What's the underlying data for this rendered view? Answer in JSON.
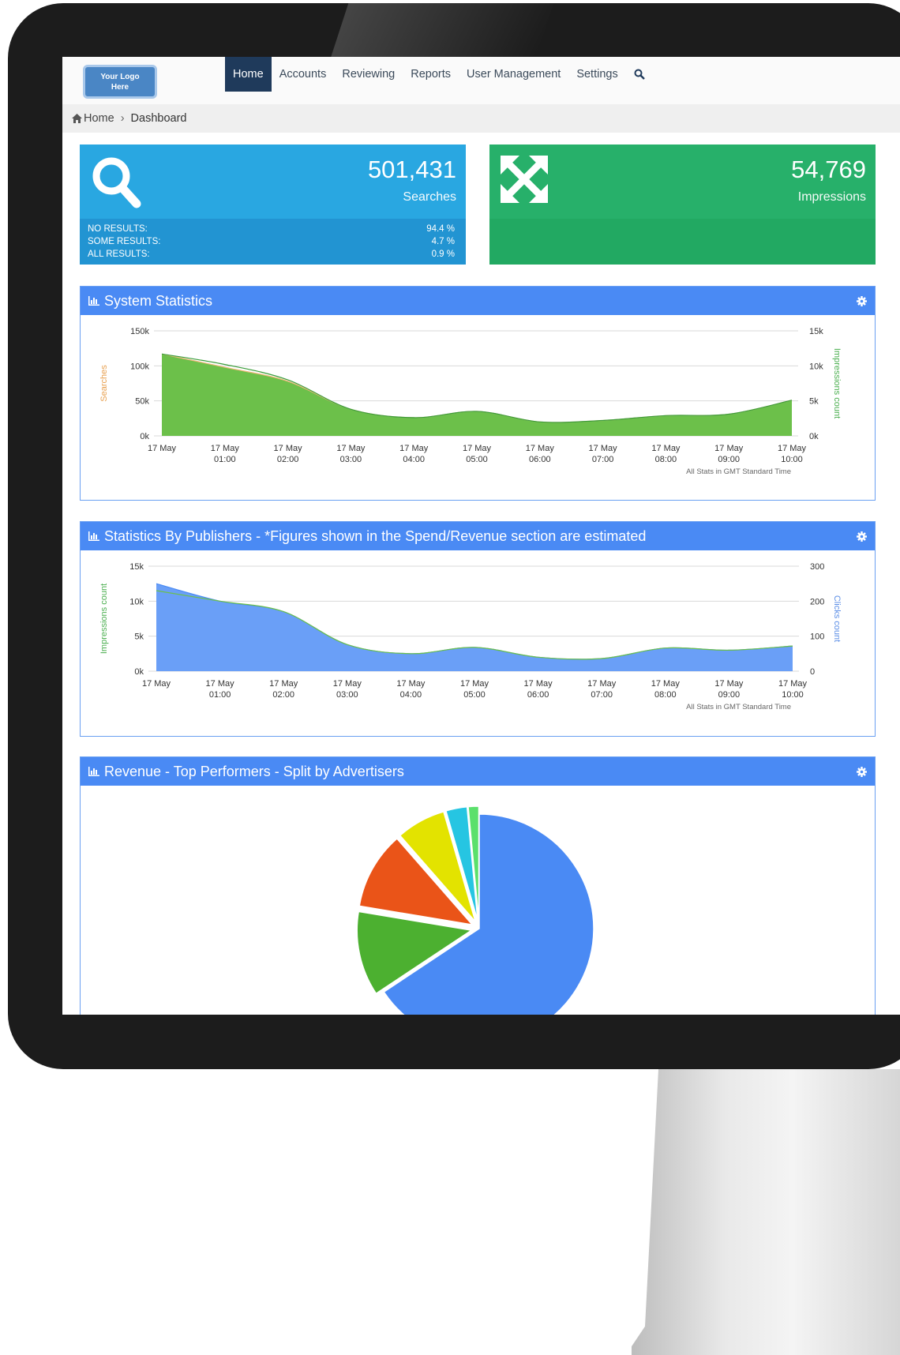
{
  "header": {
    "logo_text_1": "Your Logo",
    "logo_text_2": "Here",
    "nav": [
      "Home",
      "Accounts",
      "Reviewing",
      "Reports",
      "User Management",
      "Settings"
    ]
  },
  "breadcrumb": {
    "home": "Home",
    "current": "Dashboard"
  },
  "stats": {
    "searches": {
      "value": "501,431",
      "label": "Searches",
      "rows": [
        {
          "label": "NO RESULTS:",
          "value": "94.4 %"
        },
        {
          "label": "SOME RESULTS:",
          "value": "4.7 %"
        },
        {
          "label": "ALL RESULTS:",
          "value": "0.9 %"
        }
      ]
    },
    "impressions": {
      "value": "54,769",
      "label": "Impressions"
    }
  },
  "colors": {
    "blue_tile": "#29a7e1",
    "green_tile": "#27b06a",
    "panel_header": "#4a8af4"
  },
  "panels": {
    "system": {
      "title": "System Statistics"
    },
    "publishers": {
      "title": "Statistics By Publishers - *Figures shown in the Spend/Revenue section are estimated"
    },
    "revenue": {
      "title": "Revenue - Top Performers - Split by Advertisers"
    }
  },
  "chart_data": [
    {
      "type": "area",
      "x": [
        "17 May",
        "17 May 01:00",
        "17 May 02:00",
        "17 May 03:00",
        "17 May 04:00",
        "17 May 05:00",
        "17 May 06:00",
        "17 May 07:00",
        "17 May 08:00",
        "17 May 09:00",
        "17 May 10:00"
      ],
      "ylabel": "Searches",
      "ylim": [
        0,
        150000
      ],
      "yticks": [
        "0k",
        "50k",
        "100k",
        "150k"
      ],
      "y2label": "Impressions count",
      "y2lim": [
        0,
        15000
      ],
      "y2ticks": [
        "0k",
        "5k",
        "10k",
        "15k"
      ],
      "series": [
        {
          "values": [
            117000,
            98000,
            78000,
            38000,
            26000,
            35000,
            20000,
            22000,
            29000,
            31000,
            51000
          ]
        },
        {
          "values": [
            11700,
            10200,
            8000,
            3800,
            2600,
            3500,
            2000,
            2200,
            2900,
            3100,
            5100
          ]
        }
      ],
      "note": "All Stats in GMT Standard Time",
      "grid": true
    },
    {
      "type": "area",
      "x": [
        "17 May",
        "17 May 01:00",
        "17 May 02:00",
        "17 May 03:00",
        "17 May 04:00",
        "17 May 05:00",
        "17 May 06:00",
        "17 May 07:00",
        "17 May 08:00",
        "17 May 09:00",
        "17 May 10:00"
      ],
      "ylabel": "Impressions count",
      "ylim": [
        0,
        15000
      ],
      "yticks": [
        "0k",
        "5k",
        "10k",
        "15k"
      ],
      "y2label": "Clicks count",
      "y2lim": [
        0,
        300
      ],
      "y2ticks": [
        "0",
        "100",
        "200",
        "300"
      ],
      "series": [
        {
          "values": [
            12500,
            10000,
            8500,
            3800,
            2500,
            3400,
            2000,
            1800,
            3300,
            3000,
            3600
          ]
        },
        {
          "values": [
            230,
            200,
            170,
            76,
            50,
            68,
            40,
            36,
            66,
            60,
            72
          ]
        }
      ],
      "note": "All Stats in GMT Standard Time",
      "grid": true
    },
    {
      "type": "pie",
      "values": [
        66,
        12,
        11,
        7,
        3,
        1.5
      ],
      "colors": [
        "#4a8af4",
        "#4cb030",
        "#ea5418",
        "#e3e300",
        "#26c5e2",
        "#5be06c"
      ]
    }
  ]
}
